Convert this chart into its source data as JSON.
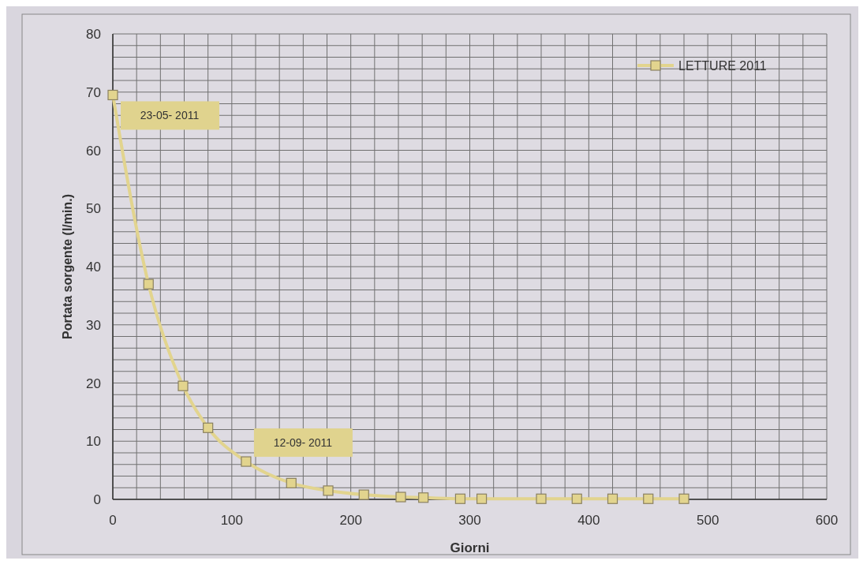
{
  "chart_data": {
    "type": "line",
    "xlabel": "Giorni",
    "ylabel": "Portata sorgente  (l/min.)",
    "x": [
      0,
      30,
      59,
      80,
      112,
      150,
      181,
      211,
      242,
      261,
      292,
      310,
      360,
      390,
      420,
      450,
      480
    ],
    "series": [
      {
        "name": "LETTURE 2011",
        "color": "#e2d48e",
        "values": [
          69.5,
          37,
          19.5,
          12.3,
          6.5,
          2.8,
          1.5,
          0.8,
          0.4,
          0.3,
          0.1,
          0.1,
          0.1,
          0.1,
          0.1,
          0.1,
          0.1
        ]
      }
    ],
    "xlim": [
      0,
      600
    ],
    "ylim": [
      0,
      80
    ],
    "xticks": [
      0,
      {
        "value": 20,
        "label": null
      },
      {
        "value": 40,
        "label": null
      },
      {
        "value": 60,
        "label": null
      },
      {
        "value": 80,
        "label": null
      },
      100,
      {
        "value": 120,
        "label": null
      },
      {
        "value": 140,
        "label": null
      },
      {
        "value": 160,
        "label": null
      },
      {
        "value": 180,
        "label": null
      },
      200,
      {
        "value": 220,
        "label": null
      },
      {
        "value": 240,
        "label": null
      },
      {
        "value": 260,
        "label": null
      },
      {
        "value": 280,
        "label": null
      },
      300,
      {
        "value": 320,
        "label": null
      },
      {
        "value": 340,
        "label": null
      },
      {
        "value": 360,
        "label": null
      },
      {
        "value": 380,
        "label": null
      },
      400,
      {
        "value": 420,
        "label": null
      },
      {
        "value": 440,
        "label": null
      },
      {
        "value": 460,
        "label": null
      },
      {
        "value": 480,
        "label": null
      },
      500,
      {
        "value": 520,
        "label": null
      },
      {
        "value": 540,
        "label": null
      },
      {
        "value": 560,
        "label": null
      },
      {
        "value": 580,
        "label": null
      },
      600
    ],
    "yticks": [
      0,
      {
        "value": 2,
        "label": null
      },
      {
        "value": 4,
        "label": null
      },
      {
        "value": 6,
        "label": null
      },
      {
        "value": 8,
        "label": null
      },
      10,
      {
        "value": 12,
        "label": null
      },
      {
        "value": 14,
        "label": null
      },
      {
        "value": 16,
        "label": null
      },
      {
        "value": 18,
        "label": null
      },
      20,
      {
        "value": 22,
        "label": null
      },
      {
        "value": 24,
        "label": null
      },
      {
        "value": 26,
        "label": null
      },
      {
        "value": 28,
        "label": null
      },
      30,
      {
        "value": 32,
        "label": null
      },
      {
        "value": 34,
        "label": null
      },
      {
        "value": 36,
        "label": null
      },
      {
        "value": 38,
        "label": null
      },
      40,
      {
        "value": 42,
        "label": null
      },
      {
        "value": 44,
        "label": null
      },
      {
        "value": 46,
        "label": null
      },
      {
        "value": 48,
        "label": null
      },
      50,
      {
        "value": 52,
        "label": null
      },
      {
        "value": 54,
        "label": null
      },
      {
        "value": 56,
        "label": null
      },
      {
        "value": 58,
        "label": null
      },
      60,
      {
        "value": 62,
        "label": null
      },
      {
        "value": 64,
        "label": null
      },
      {
        "value": 66,
        "label": null
      },
      {
        "value": 68,
        "label": null
      },
      70,
      {
        "value": 72,
        "label": null
      },
      {
        "value": 74,
        "label": null
      },
      {
        "value": 76,
        "label": null
      },
      {
        "value": 78,
        "label": null
      },
      80
    ],
    "grid": true,
    "legend": "top right",
    "marker": "square",
    "line_style": "solid",
    "annotations": [
      {
        "text": "23-05- 2011",
        "x": 0,
        "y": 69.5
      },
      {
        "text": "12-09- 2011",
        "x": 112,
        "y": 6.5
      }
    ]
  }
}
